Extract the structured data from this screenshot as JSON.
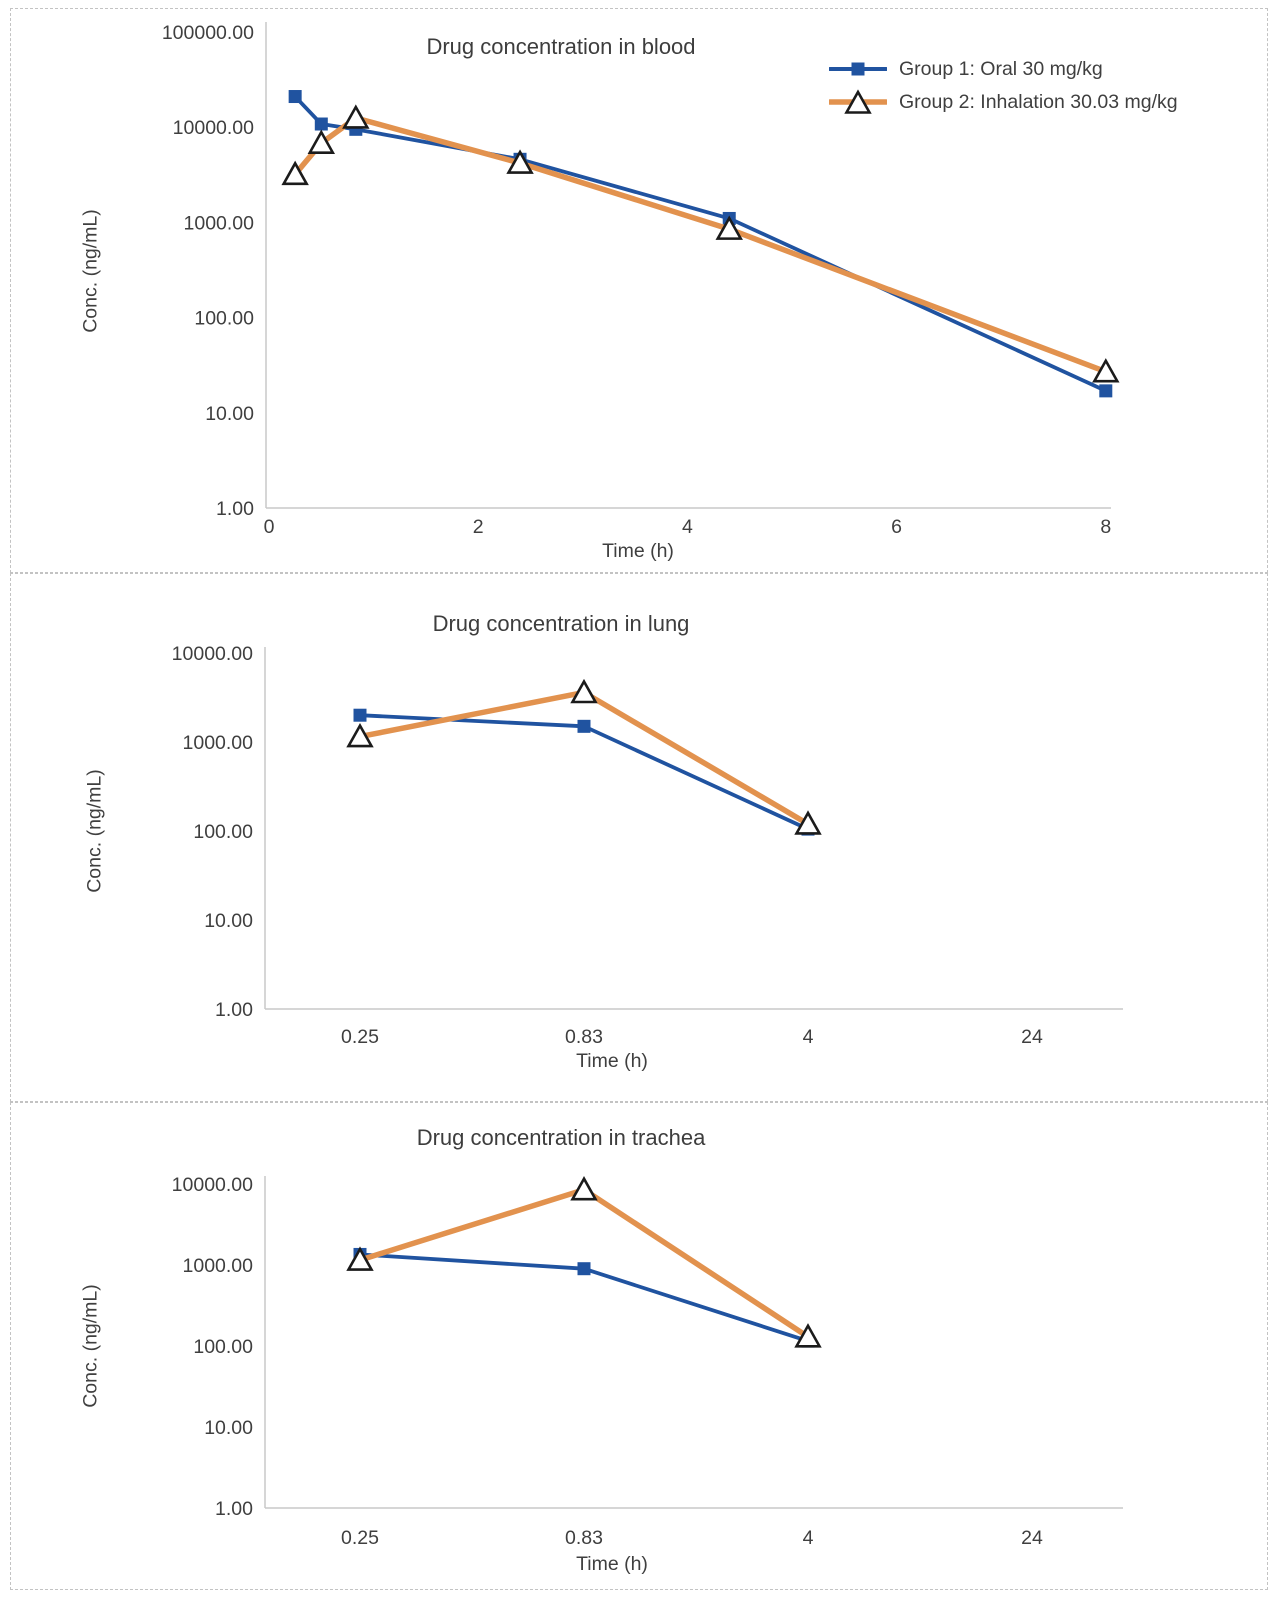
{
  "colors": {
    "group1": "#2053A0",
    "group2": "#E2924E",
    "marker_fill": "#ffffff",
    "marker_outline": "#1b1b1b",
    "axis": "#c9c9c9",
    "text": "#3f3f3f"
  },
  "legend": {
    "items": [
      {
        "label": "Group 1: Oral 30 mg/kg",
        "series": "group1",
        "marker": "square"
      },
      {
        "label": "Group 2: Inhalation 30.03 mg/kg",
        "series": "group2",
        "marker": "triangle"
      }
    ]
  },
  "chart_data": [
    {
      "type": "line",
      "title": "Drug concentration in blood",
      "xlabel": "Time (h)",
      "ylabel": "Conc. (ng/mL)",
      "y_scale": "log",
      "ylim": [
        1,
        100000
      ],
      "y_ticks": [
        "100000.00",
        "10000.00",
        "1000.00",
        "100.00",
        "10.00",
        "1.00"
      ],
      "x_axis": "linear",
      "x_ticks": [
        "0",
        "2",
        "4",
        "6",
        "8"
      ],
      "grid": false,
      "legend_position": "top-right-inside",
      "series": [
        {
          "name": "Group 1: Oral 30 mg/kg",
          "marker": "square",
          "color_key": "group1",
          "x": [
            0.25,
            0.5,
            0.83,
            2.4,
            4.4,
            8
          ],
          "y": [
            21000,
            10800,
            9500,
            4600,
            1100,
            17
          ]
        },
        {
          "name": "Group 2: Inhalation 30.03 mg/kg",
          "marker": "triangle",
          "color_key": "group2",
          "x": [
            0.25,
            0.5,
            0.83,
            2.4,
            4.4,
            8
          ],
          "y": [
            3200,
            6800,
            12500,
            4200,
            850,
            27
          ]
        }
      ]
    },
    {
      "type": "line",
      "title": "Drug concentration in lung",
      "xlabel": "Time (h)",
      "ylabel": "Conc. (ng/mL)",
      "y_scale": "log",
      "ylim": [
        1,
        10000
      ],
      "y_ticks": [
        "10000.00",
        "1000.00",
        "100.00",
        "10.00",
        "1.00"
      ],
      "x_axis": "category",
      "categories": [
        "0.25",
        "0.83",
        "4",
        "24"
      ],
      "grid": false,
      "series": [
        {
          "name": "Group 1: Oral 30 mg/kg",
          "marker": "square",
          "color_key": "group1",
          "y": [
            2000,
            1500,
            105,
            null
          ]
        },
        {
          "name": "Group 2: Inhalation 30.03 mg/kg",
          "marker": "triangle",
          "color_key": "group2",
          "y": [
            1150,
            3600,
            120,
            null
          ]
        }
      ]
    },
    {
      "type": "line",
      "title": "Drug concentration in trachea",
      "xlabel": "Time (h)",
      "ylabel": "Conc. (ng/mL)",
      "y_scale": "log",
      "ylim": [
        1,
        10000
      ],
      "y_ticks": [
        "10000.00",
        "1000.00",
        "100.00",
        "10.00",
        "1.00"
      ],
      "x_axis": "category",
      "categories": [
        "0.25",
        "0.83",
        "4",
        "24"
      ],
      "grid": false,
      "series": [
        {
          "name": "Group 1: Oral 30 mg/kg",
          "marker": "square",
          "color_key": "group1",
          "y": [
            1350,
            900,
            115,
            null
          ]
        },
        {
          "name": "Group 2: Inhalation 30.03 mg/kg",
          "marker": "triangle",
          "color_key": "group2",
          "y": [
            1150,
            8500,
            130,
            null
          ]
        }
      ]
    }
  ]
}
